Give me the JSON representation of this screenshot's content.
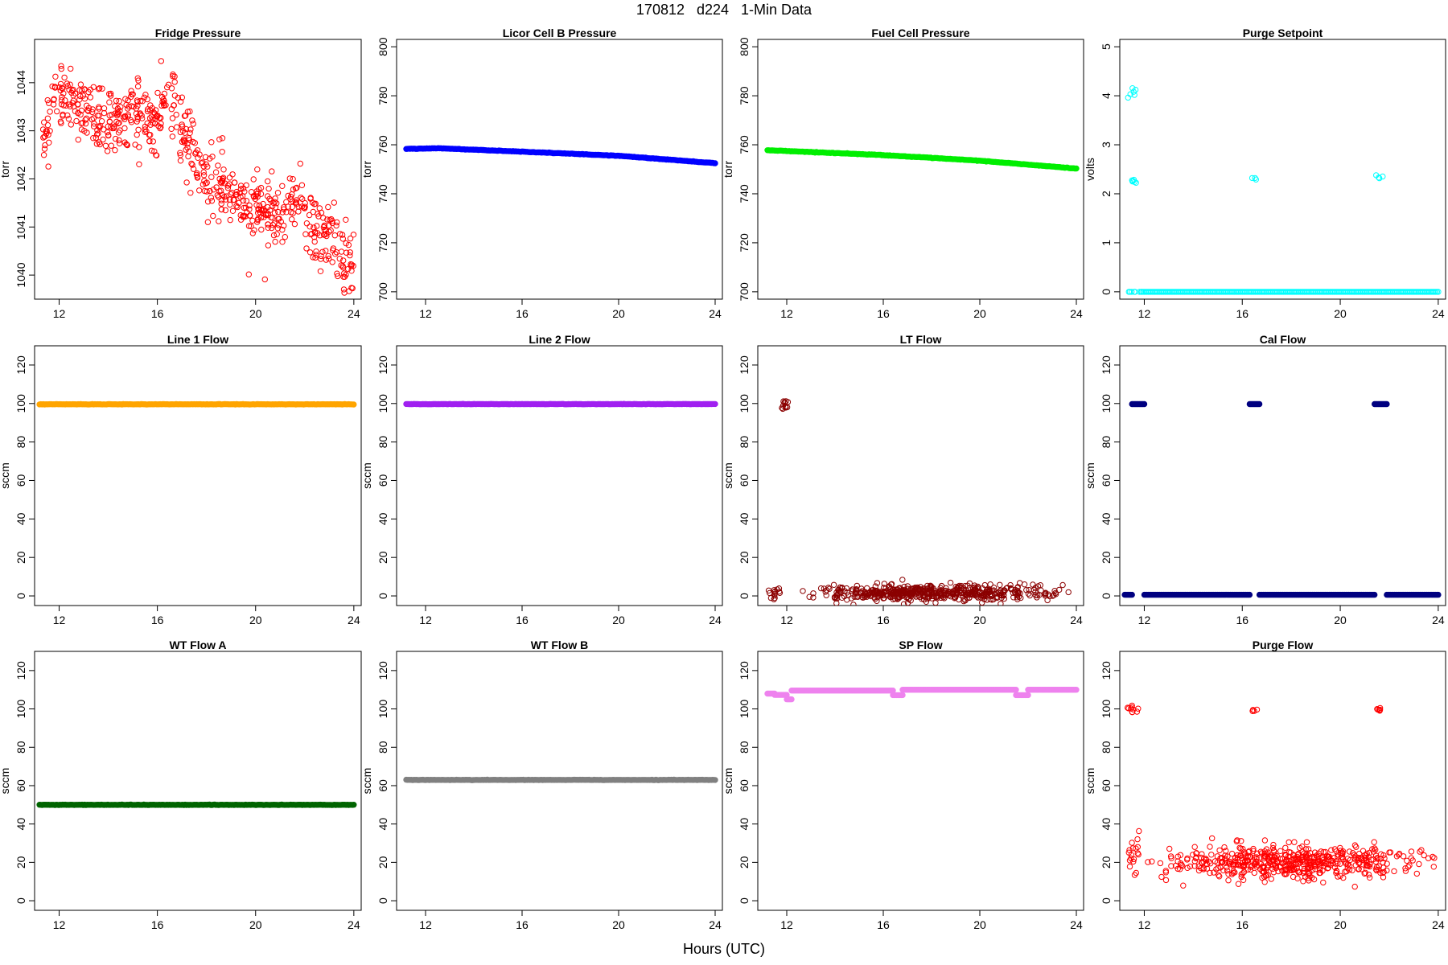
{
  "page": {
    "title": "170812   d224   1-Min Data",
    "xlabel": "Hours (UTC)"
  },
  "chart_data": [
    {
      "type": "scatter",
      "title": "Fridge Pressure",
      "ylabel": "torr",
      "color": "#ff0000",
      "marker": "open",
      "xlim": [
        11,
        24.3
      ],
      "ylim": [
        1039.5,
        1044.9
      ],
      "xticks": [
        12,
        16,
        20,
        24
      ],
      "yticks": [
        1040,
        1041,
        1042,
        1043,
        1044
      ],
      "shape": "noisy",
      "noise": 0.35,
      "x_start": 11.3,
      "x_end": 24,
      "points": 650,
      "trend": [
        [
          11.3,
          1042.6
        ],
        [
          11.8,
          1043.8
        ],
        [
          12.5,
          1043.6
        ],
        [
          14,
          1043.2
        ],
        [
          15,
          1043.4
        ],
        [
          16,
          1043.3
        ],
        [
          16.5,
          1043.9
        ],
        [
          17,
          1043.0
        ],
        [
          18,
          1042.0
        ],
        [
          19,
          1041.7
        ],
        [
          20,
          1041.4
        ],
        [
          21,
          1041.2
        ],
        [
          21.7,
          1041.6
        ],
        [
          22.3,
          1041.0
        ],
        [
          23,
          1040.8
        ],
        [
          24,
          1040.1
        ]
      ]
    },
    {
      "type": "scatter",
      "title": "Licor Cell B Pressure",
      "ylabel": "torr",
      "color": "#0000ff",
      "marker": "dense",
      "xlim": [
        10.8,
        24.3
      ],
      "ylim": [
        697,
        803
      ],
      "xticks": [
        12,
        16,
        20,
        24
      ],
      "yticks": [
        700,
        720,
        740,
        760,
        780,
        800
      ],
      "shape": "line",
      "x_start": 11.2,
      "x_end": 24,
      "trend": [
        [
          11.2,
          758.3
        ],
        [
          12.5,
          758.6
        ],
        [
          16,
          757.2
        ],
        [
          20,
          755.5
        ],
        [
          24,
          752.5
        ]
      ]
    },
    {
      "type": "scatter",
      "title": "Fuel Cell Pressure",
      "ylabel": "torr",
      "color": "#00ee00",
      "marker": "dense",
      "xlim": [
        10.8,
        24.3
      ],
      "ylim": [
        697,
        803
      ],
      "xticks": [
        12,
        16,
        20,
        24
      ],
      "yticks": [
        700,
        720,
        740,
        760,
        780,
        800
      ],
      "shape": "line",
      "x_start": 11.2,
      "x_end": 24,
      "trend": [
        [
          11.2,
          757.8
        ],
        [
          16,
          755.8
        ],
        [
          20,
          753.5
        ],
        [
          24,
          750.3
        ]
      ]
    },
    {
      "type": "scatter",
      "title": "Purge Setpoint",
      "ylabel": "volts",
      "color": "#00ffff",
      "marker": "open",
      "xlim": [
        11,
        24.3
      ],
      "ylim": [
        -0.15,
        5.15
      ],
      "xticks": [
        12,
        16,
        20,
        24
      ],
      "yticks": [
        0,
        1,
        2,
        3,
        4,
        5
      ],
      "shape": "segments",
      "segments": [
        {
          "x": [
            11.2,
            11.9
          ],
          "y": 0,
          "n": 8
        },
        {
          "x": [
            11.9,
            24
          ],
          "y": 0,
          "dense": true
        },
        {
          "x": [
            11.3,
            11.8
          ],
          "y": 4.05,
          "n": 6,
          "jitter": 0.06
        },
        {
          "x": [
            11.3,
            11.8
          ],
          "y": 2.26,
          "n": 6,
          "jitter": 0.02
        },
        {
          "x": [
            16.4,
            16.6
          ],
          "y": 2.32,
          "n": 3,
          "jitter": 0.01
        },
        {
          "x": [
            21.4,
            21.8
          ],
          "y": 2.34,
          "n": 4,
          "jitter": 0.02
        }
      ]
    },
    {
      "type": "scatter",
      "title": "Line 1 Flow",
      "ylabel": "sccm",
      "color": "#ffa500",
      "marker": "dense",
      "xlim": [
        11,
        24.3
      ],
      "ylim": [
        -5,
        130
      ],
      "xticks": [
        12,
        16,
        20,
        24
      ],
      "yticks": [
        0,
        20,
        40,
        60,
        80,
        100,
        120
      ],
      "shape": "line",
      "x_start": 11.2,
      "x_end": 24,
      "trend": [
        [
          11.2,
          99.6
        ],
        [
          24,
          99.6
        ]
      ]
    },
    {
      "type": "scatter",
      "title": "Line 2 Flow",
      "ylabel": "sccm",
      "color": "#a020f0",
      "marker": "dense",
      "xlim": [
        10.8,
        24.3
      ],
      "ylim": [
        -5,
        130
      ],
      "xticks": [
        12,
        16,
        20,
        24
      ],
      "yticks": [
        0,
        20,
        40,
        60,
        80,
        100,
        120
      ],
      "shape": "line",
      "x_start": 11.2,
      "x_end": 24,
      "trend": [
        [
          11.2,
          99.7
        ],
        [
          24,
          99.7
        ]
      ]
    },
    {
      "type": "scatter",
      "title": "LT Flow",
      "ylabel": "sccm",
      "color": "#8b0000",
      "marker": "open",
      "xlim": [
        10.8,
        24.3
      ],
      "ylim": [
        -5,
        130
      ],
      "xticks": [
        12,
        16,
        20,
        24
      ],
      "yticks": [
        0,
        20,
        40,
        60,
        80,
        100,
        120
      ],
      "shape": "segments",
      "segments": [
        {
          "x": [
            11.2,
            11.8
          ],
          "y": 0.5,
          "n": 14,
          "jitter": 2.5
        },
        {
          "x": [
            11.7,
            12.2
          ],
          "y": 99.5,
          "n": 12,
          "jitter": 2.0
        },
        {
          "x": [
            12.2,
            24
          ],
          "y": 1.6,
          "n": 520,
          "jitter": 2.2
        }
      ]
    },
    {
      "type": "scatter",
      "title": "Cal Flow",
      "ylabel": "sccm",
      "color": "#000080",
      "marker": "dense",
      "xlim": [
        11,
        24.3
      ],
      "ylim": [
        -5,
        130
      ],
      "xticks": [
        12,
        16,
        20,
        24
      ],
      "yticks": [
        0,
        20,
        40,
        60,
        80,
        100,
        120
      ],
      "shape": "segments",
      "segments": [
        {
          "x": [
            11.2,
            11.5
          ],
          "y": 0.6,
          "dense": true
        },
        {
          "x": [
            11.5,
            12.0
          ],
          "y": 99.7,
          "dense": true
        },
        {
          "x": [
            12.0,
            16.3
          ],
          "y": 0.6,
          "dense": true
        },
        {
          "x": [
            16.3,
            16.7
          ],
          "y": 99.7,
          "dense": true
        },
        {
          "x": [
            16.7,
            21.4
          ],
          "y": 0.6,
          "dense": true
        },
        {
          "x": [
            21.4,
            21.9
          ],
          "y": 99.7,
          "dense": true
        },
        {
          "x": [
            21.9,
            24
          ],
          "y": 0.6,
          "dense": true
        }
      ]
    },
    {
      "type": "scatter",
      "title": "WT Flow A",
      "ylabel": "sccm",
      "color": "#006400",
      "marker": "dense",
      "xlim": [
        11,
        24.3
      ],
      "ylim": [
        -5,
        130
      ],
      "xticks": [
        12,
        16,
        20,
        24
      ],
      "yticks": [
        0,
        20,
        40,
        60,
        80,
        100,
        120
      ],
      "shape": "line",
      "x_start": 11.2,
      "x_end": 24,
      "trend": [
        [
          11.2,
          50
        ],
        [
          24,
          50
        ]
      ]
    },
    {
      "type": "scatter",
      "title": "WT Flow B",
      "ylabel": "sccm",
      "color": "#808080",
      "marker": "dense",
      "xlim": [
        10.8,
        24.3
      ],
      "ylim": [
        -5,
        130
      ],
      "xticks": [
        12,
        16,
        20,
        24
      ],
      "yticks": [
        0,
        20,
        40,
        60,
        80,
        100,
        120
      ],
      "shape": "line",
      "x_start": 11.2,
      "x_end": 24,
      "trend": [
        [
          11.2,
          63
        ],
        [
          24,
          63
        ]
      ]
    },
    {
      "type": "scatter",
      "title": "SP Flow",
      "ylabel": "sccm",
      "color": "#ee82ee",
      "marker": "dense",
      "xlim": [
        10.8,
        24.3
      ],
      "ylim": [
        -5,
        130
      ],
      "xticks": [
        12,
        16,
        20,
        24
      ],
      "yticks": [
        0,
        20,
        40,
        60,
        80,
        100,
        120
      ],
      "shape": "segments",
      "segments": [
        {
          "x": [
            11.2,
            11.5
          ],
          "y": 108.0,
          "dense": true
        },
        {
          "x": [
            11.5,
            12.0
          ],
          "y": 107.3,
          "dense": true
        },
        {
          "x": [
            12.0,
            12.2
          ],
          "y": 105.0,
          "dense": true
        },
        {
          "x": [
            12.2,
            16.4
          ],
          "y": 109.6,
          "dense": true
        },
        {
          "x": [
            16.4,
            16.8
          ],
          "y": 107.2,
          "dense": true
        },
        {
          "x": [
            16.8,
            21.5
          ],
          "y": 110.0,
          "dense": true
        },
        {
          "x": [
            21.5,
            22.0
          ],
          "y": 107.2,
          "dense": true
        },
        {
          "x": [
            22.0,
            24
          ],
          "y": 110.0,
          "dense": true
        }
      ]
    },
    {
      "type": "scatter",
      "title": "Purge Flow",
      "ylabel": "sccm",
      "color": "#ff0000",
      "marker": "open",
      "xlim": [
        11,
        24.3
      ],
      "ylim": [
        -5,
        130
      ],
      "xticks": [
        12,
        16,
        20,
        24
      ],
      "yticks": [
        0,
        20,
        40,
        60,
        80,
        100,
        120
      ],
      "shape": "segments",
      "segments": [
        {
          "x": [
            11.2,
            11.8
          ],
          "y": 99.7,
          "n": 10,
          "jitter": 0.8
        },
        {
          "x": [
            16.4,
            16.6
          ],
          "y": 99.4,
          "n": 4,
          "jitter": 0.6
        },
        {
          "x": [
            21.4,
            21.8
          ],
          "y": 99.7,
          "n": 6,
          "jitter": 0.6
        },
        {
          "x": [
            11.2,
            12.0
          ],
          "y": 24,
          "n": 18,
          "jitter": 5
        },
        {
          "x": [
            12.0,
            24
          ],
          "y": 20.5,
          "n": 520,
          "jitter": 4.2
        }
      ]
    }
  ]
}
